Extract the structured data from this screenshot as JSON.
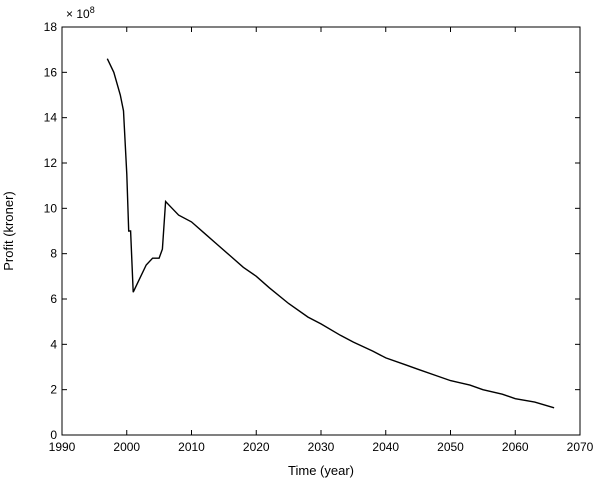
{
  "chart_data": {
    "type": "line",
    "title": "",
    "xlabel": "Time (year)",
    "ylabel": "Profit (kroner)",
    "y_multiplier_label": "× 10",
    "y_multiplier_exponent": "8",
    "xlim": [
      1990,
      2070
    ],
    "ylim": [
      0,
      18
    ],
    "xticks": [
      1990,
      2000,
      2010,
      2020,
      2030,
      2040,
      2050,
      2060,
      2070
    ],
    "yticks": [
      0,
      2,
      4,
      6,
      8,
      10,
      12,
      14,
      16,
      18
    ],
    "grid": false,
    "line_color": "#000000",
    "series": [
      {
        "x": [
          1997,
          1998,
          1999,
          1999.5,
          2000,
          2000.3,
          2000.6,
          2001,
          2002,
          2003,
          2004,
          2005,
          2005.5,
          2006,
          2007,
          2008,
          2010,
          2012,
          2014,
          2016,
          2018,
          2020,
          2022,
          2025,
          2028,
          2030,
          2033,
          2035,
          2038,
          2040,
          2043,
          2045,
          2048,
          2050,
          2053,
          2055,
          2058,
          2060,
          2063,
          2066
        ],
        "y": [
          16.6,
          16.0,
          15.0,
          14.3,
          11.5,
          9.0,
          9.0,
          6.3,
          6.9,
          7.5,
          7.8,
          7.8,
          8.2,
          10.3,
          10.0,
          9.7,
          9.4,
          8.9,
          8.4,
          7.9,
          7.4,
          7.0,
          6.5,
          5.8,
          5.2,
          4.9,
          4.4,
          4.1,
          3.7,
          3.4,
          3.1,
          2.9,
          2.6,
          2.4,
          2.2,
          2.0,
          1.8,
          1.6,
          1.45,
          1.2
        ]
      }
    ]
  }
}
